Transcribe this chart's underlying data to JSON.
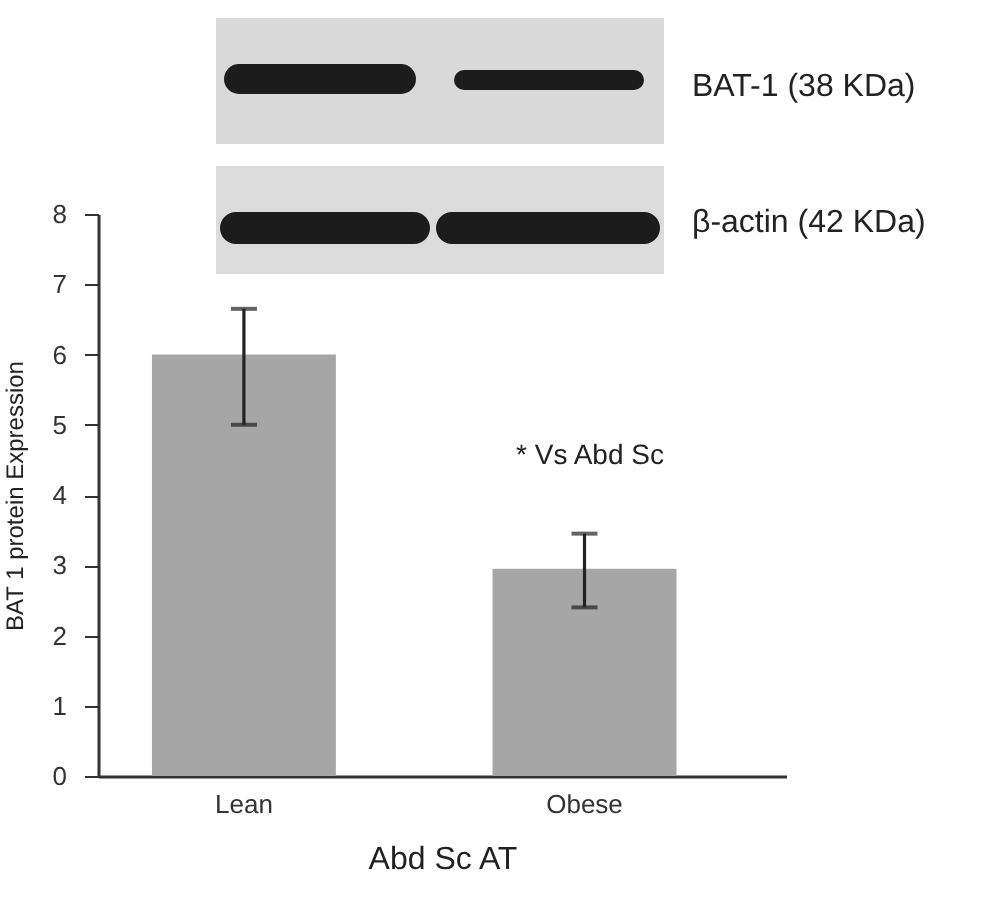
{
  "chart_data": {
    "type": "bar",
    "categories": [
      "Lean",
      "Obese"
    ],
    "values": [
      6.0,
      2.95
    ],
    "errors": [
      [
        5.0,
        6.65
      ],
      [
        2.4,
        3.45
      ]
    ],
    "color": "#a6a6a6",
    "xlabel": "Abd Sc AT",
    "ylabel": "BAT 1 protein Expression",
    "ylim": [
      0,
      8
    ],
    "yticks": [
      0,
      1,
      2,
      3,
      4,
      5,
      6,
      7,
      8
    ],
    "grid": false,
    "annotations": [
      "BAT-1 (38 KDa)",
      "β-actin (42 KDa)",
      "* Vs Abd Sc"
    ]
  }
}
